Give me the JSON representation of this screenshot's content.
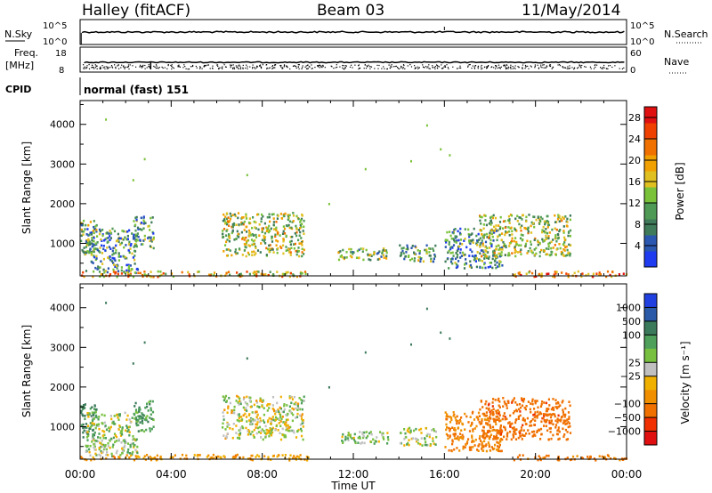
{
  "header": {
    "station": "Halley (fitACF)",
    "beam": "Beam 03",
    "date": "11/May/2014"
  },
  "colors": {
    "power_scale": [
      "#1f3cf0",
      "#2a57b0",
      "#3f7a5a",
      "#4f9a54",
      "#7ac23a",
      "#e0c020",
      "#f0a000",
      "#f07000",
      "#f04000",
      "#e01010"
    ],
    "velocity_scale": [
      "#2040e0",
      "#2a5aa8",
      "#3b7a5a",
      "#4ea05a",
      "#78c040",
      "#c0c0c0",
      "#f0b000",
      "#f09000",
      "#f07000",
      "#f03000",
      "#e01010"
    ],
    "ground_scatter": "#808080"
  },
  "chart_data": [
    {
      "type": "line",
      "name": "sky-noise-search-noise",
      "left_axis_label": "N.Sky",
      "right_axis_label": "N.Search",
      "left_ticks": [
        "10^5",
        "10^0"
      ],
      "right_ticks": [
        "10^5",
        "10^0"
      ],
      "xlim": [
        "00:00",
        "24:00"
      ],
      "series": [
        {
          "values_hint": "near-constant at ~10^2.5 throughout the day"
        }
      ]
    },
    {
      "type": "line",
      "name": "frequency-nave",
      "left_axis_label": "Freq. [MHz]",
      "right_axis_label": "Nave",
      "left_ticks": [
        "18",
        "8"
      ],
      "right_ticks": [
        "60",
        "0"
      ],
      "series": [
        {
          "values_hint": "frequency near 11 MHz all day"
        }
      ]
    },
    {
      "type": "text",
      "name": "cpid",
      "label": "CPID",
      "value": "normal (fast) 151"
    },
    {
      "type": "heatmap",
      "name": "power",
      "ylabel": "Slant Range [km]",
      "ylim": [
        180,
        4600
      ],
      "yticks": [
        1000,
        2000,
        3000,
        4000
      ],
      "x_ticks": [
        "00:00",
        "04:00",
        "08:00",
        "12:00",
        "16:00",
        "20:00",
        "00:00"
      ],
      "colorbar_label": "Power [dB]",
      "colorbar_ticks": [
        4,
        8,
        12,
        16,
        20,
        24,
        28
      ],
      "clim": [
        0,
        30
      ],
      "blobs": [
        {
          "t0": 0.0,
          "t1": 0.7,
          "r0": 700,
          "r1": 1600,
          "mean": 12
        },
        {
          "t0": 0.2,
          "t1": 2.5,
          "r0": 280,
          "r1": 1400,
          "mean": 9
        },
        {
          "t0": 2.3,
          "t1": 3.2,
          "r0": 900,
          "r1": 1700,
          "mean": 8
        },
        {
          "t0": 6.2,
          "t1": 9.8,
          "r0": 700,
          "r1": 1800,
          "mean": 14
        },
        {
          "t0": 11.2,
          "t1": 13.5,
          "r0": 600,
          "r1": 900,
          "mean": 12
        },
        {
          "t0": 14.0,
          "t1": 15.6,
          "r0": 550,
          "r1": 1000,
          "mean": 11
        },
        {
          "t0": 16.0,
          "t1": 18.5,
          "r0": 400,
          "r1": 1400,
          "mean": 9
        },
        {
          "t0": 17.5,
          "t1": 21.5,
          "r0": 700,
          "r1": 1750,
          "mean": 14
        },
        {
          "t0": 19.0,
          "t1": 24.0,
          "r0": 180,
          "r1": 320,
          "mean": 22
        },
        {
          "t0": 0.0,
          "t1": 10.0,
          "r0": 180,
          "r1": 320,
          "mean": 18
        }
      ]
    },
    {
      "type": "heatmap",
      "name": "velocity",
      "ylabel": "Slant Range [km]",
      "ylim": [
        180,
        4600
      ],
      "yticks": [
        1000,
        2000,
        3000,
        4000
      ],
      "x_ticks": [
        "00:00",
        "04:00",
        "08:00",
        "12:00",
        "16:00",
        "20:00",
        "00:00"
      ],
      "xlabel": "Time UT",
      "colorbar_label": "Velocity [m s⁻¹]",
      "colorbar_ticks": [
        "1000",
        "500",
        "100",
        "25",
        "−25",
        "−100",
        "−500",
        "−1000"
      ],
      "blobs": [
        {
          "t0": 0.0,
          "t1": 0.7,
          "r0": 700,
          "r1": 1600,
          "mean": 300
        },
        {
          "t0": 0.2,
          "t1": 2.5,
          "r0": 280,
          "r1": 1400,
          "mean": 50
        },
        {
          "t0": 2.3,
          "t1": 3.2,
          "r0": 900,
          "r1": 1700,
          "mean": 200
        },
        {
          "t0": 6.2,
          "t1": 9.8,
          "r0": 700,
          "r1": 1800,
          "mean": 0
        },
        {
          "t0": 11.2,
          "t1": 13.5,
          "r0": 600,
          "r1": 900,
          "mean": 60
        },
        {
          "t0": 14.0,
          "t1": 15.6,
          "r0": 550,
          "r1": 1000,
          "mean": 20
        },
        {
          "t0": 16.0,
          "t1": 18.5,
          "r0": 400,
          "r1": 1400,
          "mean": -250
        },
        {
          "t0": 17.5,
          "t1": 21.5,
          "r0": 700,
          "r1": 1750,
          "mean": -400
        },
        {
          "t0": 19.0,
          "t1": 24.0,
          "r0": 180,
          "r1": 320,
          "mean": -300
        },
        {
          "t0": 0.0,
          "t1": 10.0,
          "r0": 180,
          "r1": 320,
          "mean": -150
        }
      ]
    }
  ]
}
